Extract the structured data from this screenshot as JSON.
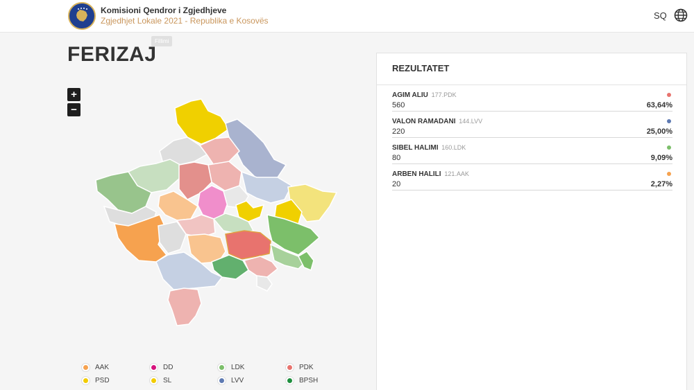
{
  "header": {
    "org_title": "Komisioni Qendror i Zgjedhjeve",
    "org_subtitle": "Zgjedhjet Lokale 2021 - Republika e Kosovës",
    "language": "SQ",
    "globe_icon": "globe-icon",
    "logo_icon": "kosovo-emblem-icon"
  },
  "page": {
    "tag": "Fillimi",
    "municipality": "FERIZAJ"
  },
  "map": {
    "zoom_in": "+",
    "zoom_out": "−"
  },
  "legend": [
    {
      "party": "AAK",
      "color": "#f6a24f"
    },
    {
      "party": "DD",
      "color": "#d6137d"
    },
    {
      "party": "LDK",
      "color": "#7cbf6a"
    },
    {
      "party": "PDK",
      "color": "#e8736e"
    },
    {
      "party": "PSD",
      "color": "#f2cc00"
    },
    {
      "party": "SL",
      "color": "#f2cc00"
    },
    {
      "party": "LVV",
      "color": "#5e7ab2"
    },
    {
      "party": "BPSH",
      "color": "#1e8e3e"
    }
  ],
  "results": {
    "title": "REZULTATET",
    "candidates": [
      {
        "name": "AGIM ALIU",
        "list": "177.PDK",
        "votes": "560",
        "percent": "63,64%",
        "color": "#e8736e"
      },
      {
        "name": "VALON RAMADANI",
        "list": "144.LVV",
        "votes": "220",
        "percent": "25,00%",
        "color": "#5e7ab2"
      },
      {
        "name": "SIBEL HALIMI",
        "list": "160.LDK",
        "votes": "80",
        "percent": "9,09%",
        "color": "#7cbf6a"
      },
      {
        "name": "ARBEN HALILI",
        "list": "121.AAK",
        "votes": "20",
        "percent": "2,27%",
        "color": "#f6a24f"
      }
    ]
  }
}
